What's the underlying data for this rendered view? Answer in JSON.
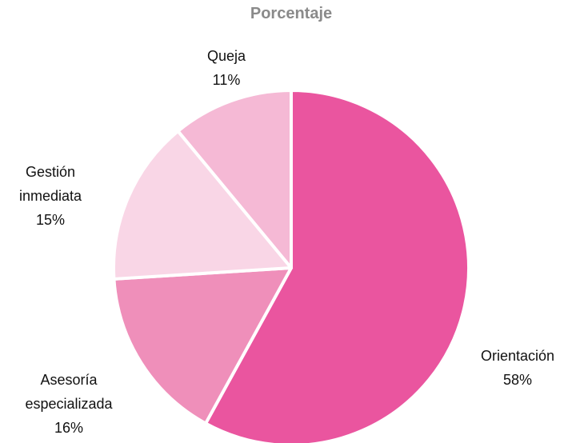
{
  "chart_data": {
    "type": "pie",
    "title": "Porcentaje",
    "categories": [
      "Orientación",
      "Asesoría especializada",
      "Gestión inmediata",
      "Queja"
    ],
    "values": [
      58,
      16,
      15,
      11
    ],
    "value_labels": [
      "58%",
      "16%",
      "15%",
      "11%"
    ],
    "colors": [
      "#ea559f",
      "#ef8fba",
      "#f9d6e6",
      "#f5b9d5"
    ]
  }
}
